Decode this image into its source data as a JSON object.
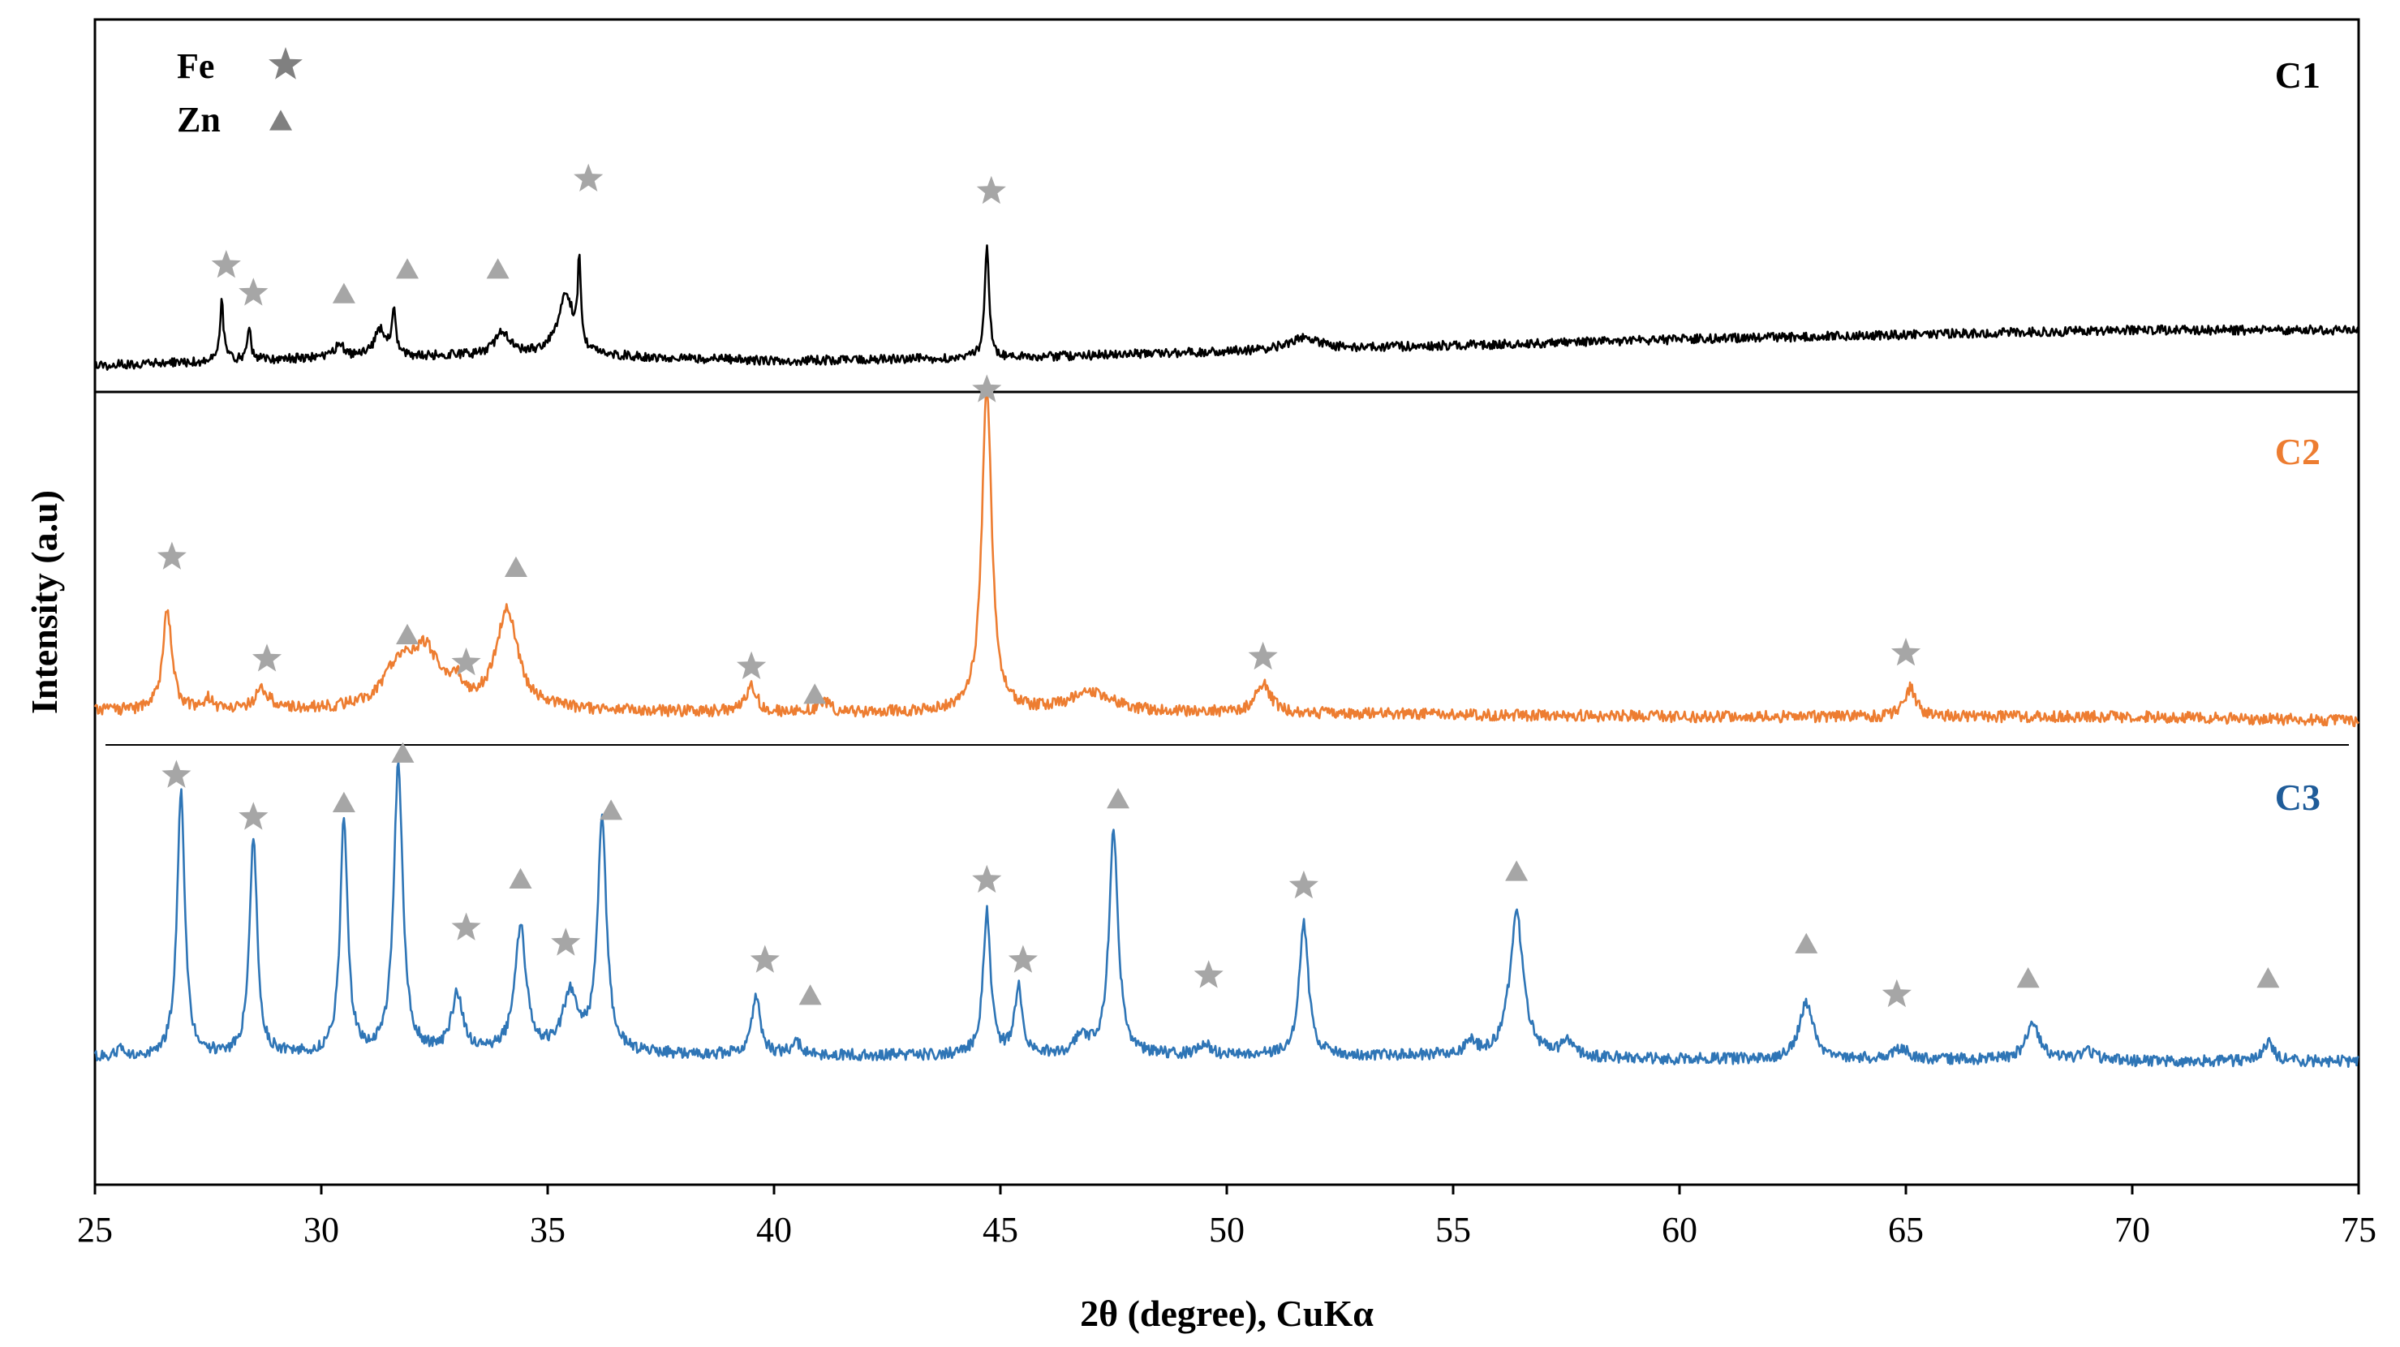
{
  "chart_data": {
    "type": "line",
    "xlabel": "2θ (degree), CuKα",
    "ylabel": "Intensity (a.u)",
    "xlim": [
      25,
      75
    ],
    "x_ticks": [
      "25",
      "30",
      "35",
      "40",
      "45",
      "50",
      "55",
      "60",
      "65",
      "70",
      "75"
    ],
    "grid": false,
    "legend": {
      "placement": "top-left",
      "entries": [
        {
          "label": "Fe",
          "marker": "star",
          "color": "#808080"
        },
        {
          "label": "Zn",
          "marker": "triangle",
          "color": "#808080"
        }
      ]
    },
    "series": [
      {
        "name": "C1",
        "color": "#000000",
        "baseline": [
          [
            25,
            0.05
          ],
          [
            30,
            0.1
          ],
          [
            35,
            0.12
          ],
          [
            40,
            0.08
          ],
          [
            45,
            0.1
          ],
          [
            50,
            0.14
          ],
          [
            55,
            0.18
          ],
          [
            60,
            0.22
          ],
          [
            65,
            0.25
          ],
          [
            70,
            0.28
          ],
          [
            75,
            0.28
          ]
        ],
        "peaks": [
          {
            "x": 27.8,
            "h": 0.38,
            "w": 0.05
          },
          {
            "x": 28.4,
            "h": 0.22,
            "w": 0.05
          },
          {
            "x": 30.4,
            "h": 0.1,
            "w": 0.1
          },
          {
            "x": 31.3,
            "h": 0.18,
            "w": 0.15
          },
          {
            "x": 31.6,
            "h": 0.28,
            "w": 0.05
          },
          {
            "x": 34.0,
            "h": 0.15,
            "w": 0.2
          },
          {
            "x": 35.4,
            "h": 0.4,
            "w": 0.2
          },
          {
            "x": 35.7,
            "h": 0.55,
            "w": 0.04
          },
          {
            "x": 44.7,
            "h": 0.72,
            "w": 0.06
          },
          {
            "x": 51.7,
            "h": 0.08,
            "w": 0.4
          }
        ],
        "markers": [
          {
            "x": 27.9,
            "type": "star",
            "level": 0.7
          },
          {
            "x": 28.5,
            "type": "star",
            "level": 0.52
          },
          {
            "x": 30.5,
            "type": "triangle",
            "level": 0.52
          },
          {
            "x": 31.9,
            "type": "triangle",
            "level": 0.68
          },
          {
            "x": 33.9,
            "type": "triangle",
            "level": 0.68
          },
          {
            "x": 35.9,
            "type": "star",
            "level": 1.26
          },
          {
            "x": 44.8,
            "type": "star",
            "level": 1.18
          }
        ]
      },
      {
        "name": "C2",
        "color": "#ED7D31",
        "baseline": [
          [
            25,
            0.05
          ],
          [
            30,
            0.05
          ],
          [
            35,
            0.05
          ],
          [
            40,
            0.04
          ],
          [
            45,
            0.04
          ],
          [
            50,
            0.04
          ],
          [
            55,
            0.03
          ],
          [
            60,
            0.02
          ],
          [
            65,
            0.02
          ],
          [
            70,
            0.02
          ],
          [
            75,
            0.0
          ]
        ],
        "peaks": [
          {
            "x": 26.6,
            "h": 0.52,
            "w": 0.12
          },
          {
            "x": 27.5,
            "h": 0.06,
            "w": 0.1
          },
          {
            "x": 28.7,
            "h": 0.1,
            "w": 0.2
          },
          {
            "x": 31.7,
            "h": 0.2,
            "w": 0.4
          },
          {
            "x": 32.3,
            "h": 0.28,
            "w": 0.4
          },
          {
            "x": 33.0,
            "h": 0.1,
            "w": 0.15
          },
          {
            "x": 34.1,
            "h": 0.52,
            "w": 0.28
          },
          {
            "x": 39.5,
            "h": 0.13,
            "w": 0.15
          },
          {
            "x": 41.1,
            "h": 0.06,
            "w": 0.15
          },
          {
            "x": 44.7,
            "h": 1.7,
            "w": 0.13
          },
          {
            "x": 47.0,
            "h": 0.1,
            "w": 0.6
          },
          {
            "x": 50.8,
            "h": 0.15,
            "w": 0.2
          },
          {
            "x": 65.1,
            "h": 0.15,
            "w": 0.15
          }
        ],
        "markers": [
          {
            "x": 26.7,
            "type": "star",
            "level": 0.85
          },
          {
            "x": 28.8,
            "type": "star",
            "level": 0.32
          },
          {
            "x": 31.9,
            "type": "triangle",
            "level": 0.45
          },
          {
            "x": 33.2,
            "type": "star",
            "level": 0.3
          },
          {
            "x": 34.3,
            "type": "triangle",
            "level": 0.8
          },
          {
            "x": 39.5,
            "type": "star",
            "level": 0.28
          },
          {
            "x": 40.9,
            "type": "triangle",
            "level": 0.14
          },
          {
            "x": 44.7,
            "type": "star",
            "level": 1.72
          },
          {
            "x": 50.8,
            "type": "star",
            "level": 0.33
          },
          {
            "x": 65.0,
            "type": "star",
            "level": 0.35
          }
        ]
      },
      {
        "name": "C3",
        "color": "#2E75B6",
        "baseline": [
          [
            25,
            0.02
          ],
          [
            30,
            0.03
          ],
          [
            35,
            0.04
          ],
          [
            40,
            0.03
          ],
          [
            45,
            0.03
          ],
          [
            50,
            0.03
          ],
          [
            55,
            0.03
          ],
          [
            60,
            0.01
          ],
          [
            65,
            0.01
          ],
          [
            70,
            0.0
          ],
          [
            75,
            0.0
          ]
        ],
        "peaks": [
          {
            "x": 25.6,
            "h": 0.05,
            "w": 0.1
          },
          {
            "x": 26.9,
            "h": 1.4,
            "w": 0.1
          },
          {
            "x": 28.5,
            "h": 1.15,
            "w": 0.1
          },
          {
            "x": 30.5,
            "h": 1.22,
            "w": 0.1
          },
          {
            "x": 31.7,
            "h": 1.5,
            "w": 0.12
          },
          {
            "x": 33.0,
            "h": 0.3,
            "w": 0.15
          },
          {
            "x": 34.4,
            "h": 0.65,
            "w": 0.15
          },
          {
            "x": 35.5,
            "h": 0.3,
            "w": 0.2
          },
          {
            "x": 36.2,
            "h": 1.2,
            "w": 0.12
          },
          {
            "x": 39.6,
            "h": 0.3,
            "w": 0.12
          },
          {
            "x": 40.5,
            "h": 0.06,
            "w": 0.15
          },
          {
            "x": 44.7,
            "h": 0.75,
            "w": 0.1
          },
          {
            "x": 45.4,
            "h": 0.35,
            "w": 0.1
          },
          {
            "x": 46.8,
            "h": 0.1,
            "w": 0.15
          },
          {
            "x": 47.5,
            "h": 1.18,
            "w": 0.12
          },
          {
            "x": 49.5,
            "h": 0.06,
            "w": 0.15
          },
          {
            "x": 51.7,
            "h": 0.7,
            "w": 0.12
          },
          {
            "x": 55.4,
            "h": 0.06,
            "w": 0.15
          },
          {
            "x": 56.4,
            "h": 0.75,
            "w": 0.18
          },
          {
            "x": 57.5,
            "h": 0.07,
            "w": 0.15
          },
          {
            "x": 62.8,
            "h": 0.3,
            "w": 0.18
          },
          {
            "x": 64.9,
            "h": 0.06,
            "w": 0.2
          },
          {
            "x": 67.8,
            "h": 0.2,
            "w": 0.18
          },
          {
            "x": 69.0,
            "h": 0.05,
            "w": 0.2
          },
          {
            "x": 73.0,
            "h": 0.1,
            "w": 0.15
          }
        ],
        "markers": [
          {
            "x": 26.8,
            "type": "star",
            "level": 1.5
          },
          {
            "x": 28.5,
            "type": "star",
            "level": 1.28
          },
          {
            "x": 30.5,
            "type": "triangle",
            "level": 1.36
          },
          {
            "x": 31.8,
            "type": "triangle",
            "level": 1.62
          },
          {
            "x": 33.2,
            "type": "star",
            "level": 0.7
          },
          {
            "x": 34.4,
            "type": "triangle",
            "level": 0.96
          },
          {
            "x": 35.4,
            "type": "star",
            "level": 0.62
          },
          {
            "x": 36.4,
            "type": "triangle",
            "level": 1.32
          },
          {
            "x": 39.8,
            "type": "star",
            "level": 0.53
          },
          {
            "x": 40.8,
            "type": "triangle",
            "level": 0.35
          },
          {
            "x": 44.7,
            "type": "star",
            "level": 0.95
          },
          {
            "x": 45.5,
            "type": "star",
            "level": 0.53
          },
          {
            "x": 47.6,
            "type": "triangle",
            "level": 1.38
          },
          {
            "x": 49.6,
            "type": "star",
            "level": 0.45
          },
          {
            "x": 51.7,
            "type": "star",
            "level": 0.92
          },
          {
            "x": 56.4,
            "type": "triangle",
            "level": 1.0
          },
          {
            "x": 62.8,
            "type": "triangle",
            "level": 0.62
          },
          {
            "x": 64.8,
            "type": "star",
            "level": 0.35
          },
          {
            "x": 67.7,
            "type": "triangle",
            "level": 0.44
          },
          {
            "x": 73.0,
            "type": "triangle",
            "level": 0.44
          }
        ]
      }
    ]
  },
  "marker_color": "#A6A6A6"
}
